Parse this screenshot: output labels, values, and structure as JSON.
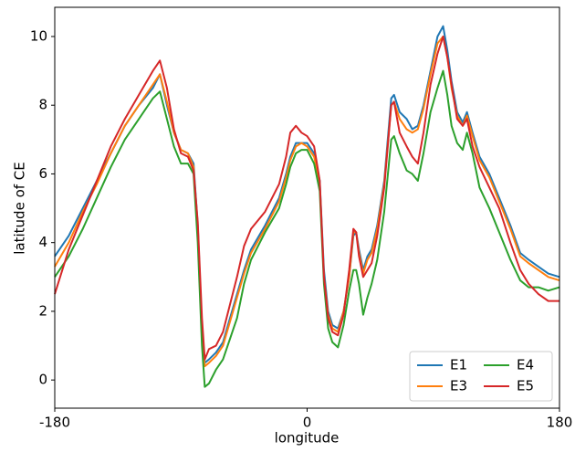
{
  "chart_data": {
    "type": "line",
    "x_label": "longitude",
    "y_label": "latitude of CE",
    "x": [
      -180,
      -170,
      -160,
      -150,
      -140,
      -130,
      -120,
      -110,
      -105,
      -100,
      -95,
      -90,
      -85,
      -81,
      -78,
      -75,
      -73,
      -70,
      -65,
      -60,
      -55,
      -50,
      -45,
      -40,
      -30,
      -20,
      -15,
      -12,
      -8,
      -4,
      0,
      5,
      9,
      12,
      15,
      18,
      22,
      26,
      30,
      33,
      35,
      37,
      40,
      43,
      46,
      50,
      55,
      60,
      62,
      66,
      71,
      75,
      79,
      83,
      88,
      93,
      97,
      100,
      103,
      107,
      111,
      114,
      118,
      123,
      130,
      137,
      145,
      152,
      158,
      165,
      172,
      180
    ],
    "series": [
      {
        "name": "E1",
        "color": "#1f77b4",
        "values": [
          3.6,
          4.2,
          5.0,
          5.8,
          6.6,
          7.4,
          8.0,
          8.5,
          8.9,
          8.0,
          7.2,
          6.7,
          6.6,
          6.3,
          4.5,
          1.5,
          0.5,
          0.6,
          0.8,
          1.1,
          1.8,
          2.5,
          3.2,
          3.8,
          4.5,
          5.3,
          6.0,
          6.5,
          6.9,
          6.9,
          6.9,
          6.6,
          5.8,
          3.2,
          2.0,
          1.6,
          1.5,
          2.0,
          3.0,
          4.2,
          4.3,
          3.8,
          3.2,
          3.6,
          3.8,
          4.5,
          5.8,
          8.2,
          8.3,
          7.8,
          7.6,
          7.3,
          7.4,
          8.0,
          9.0,
          10.0,
          10.3,
          9.6,
          8.7,
          7.8,
          7.5,
          7.8,
          7.2,
          6.5,
          6.0,
          5.3,
          4.5,
          3.7,
          3.5,
          3.3,
          3.1,
          3.0
        ]
      },
      {
        "name": "E3",
        "color": "#ff7f0e",
        "values": [
          3.3,
          4.0,
          4.9,
          5.7,
          6.6,
          7.4,
          8.0,
          8.6,
          8.9,
          8.1,
          7.2,
          6.7,
          6.6,
          6.2,
          4.3,
          1.4,
          0.4,
          0.5,
          0.7,
          1.0,
          1.7,
          2.4,
          3.1,
          3.7,
          4.4,
          5.2,
          5.9,
          6.4,
          6.8,
          6.9,
          6.8,
          6.5,
          5.7,
          3.0,
          1.9,
          1.5,
          1.4,
          2.0,
          3.0,
          4.3,
          4.3,
          3.7,
          3.1,
          3.5,
          3.7,
          4.4,
          5.7,
          8.0,
          8.1,
          7.6,
          7.3,
          7.2,
          7.3,
          7.9,
          8.9,
          9.8,
          10.0,
          9.4,
          8.5,
          7.7,
          7.4,
          7.7,
          7.1,
          6.4,
          5.9,
          5.2,
          4.4,
          3.6,
          3.4,
          3.2,
          3.0,
          2.9
        ]
      },
      {
        "name": "E4",
        "color": "#2ca02c",
        "values": [
          3.0,
          3.6,
          4.4,
          5.3,
          6.2,
          7.0,
          7.6,
          8.2,
          8.4,
          7.6,
          6.8,
          6.3,
          6.3,
          6.0,
          4.0,
          1.0,
          -0.2,
          -0.1,
          0.3,
          0.6,
          1.2,
          1.8,
          2.8,
          3.5,
          4.3,
          5.0,
          5.7,
          6.2,
          6.6,
          6.7,
          6.7,
          6.3,
          5.5,
          2.8,
          1.5,
          1.1,
          0.95,
          1.6,
          2.6,
          3.2,
          3.2,
          2.8,
          1.9,
          2.4,
          2.8,
          3.5,
          4.9,
          7.0,
          7.1,
          6.6,
          6.1,
          6.0,
          5.8,
          6.6,
          7.8,
          8.5,
          9.0,
          8.3,
          7.4,
          6.9,
          6.7,
          7.2,
          6.6,
          5.6,
          5.0,
          4.3,
          3.5,
          2.9,
          2.7,
          2.7,
          2.6,
          2.7
        ]
      },
      {
        "name": "E5",
        "color": "#d62728",
        "values": [
          2.5,
          3.8,
          4.8,
          5.8,
          6.8,
          7.6,
          8.3,
          9.0,
          9.3,
          8.5,
          7.3,
          6.6,
          6.5,
          6.1,
          4.6,
          1.8,
          0.6,
          0.9,
          1.0,
          1.4,
          2.2,
          3.0,
          3.9,
          4.4,
          4.9,
          5.7,
          6.5,
          7.2,
          7.4,
          7.2,
          7.1,
          6.8,
          5.8,
          3.0,
          1.8,
          1.4,
          1.3,
          1.9,
          3.2,
          4.4,
          4.3,
          3.6,
          3.0,
          3.2,
          3.4,
          4.2,
          5.6,
          8.0,
          8.1,
          7.2,
          6.8,
          6.5,
          6.3,
          7.2,
          8.6,
          9.5,
          10.0,
          9.4,
          8.6,
          7.6,
          7.4,
          7.6,
          6.8,
          6.2,
          5.6,
          5.0,
          4.0,
          3.2,
          2.8,
          2.5,
          2.3,
          2.3
        ]
      }
    ],
    "xlim": [
      -180,
      180
    ],
    "xticks": [
      -180,
      0,
      180
    ],
    "ylim": [
      -0.82,
      10.85
    ],
    "yticks": [
      0,
      2,
      4,
      6,
      8,
      10
    ],
    "legend": "lower right",
    "legend_columns": 2
  }
}
